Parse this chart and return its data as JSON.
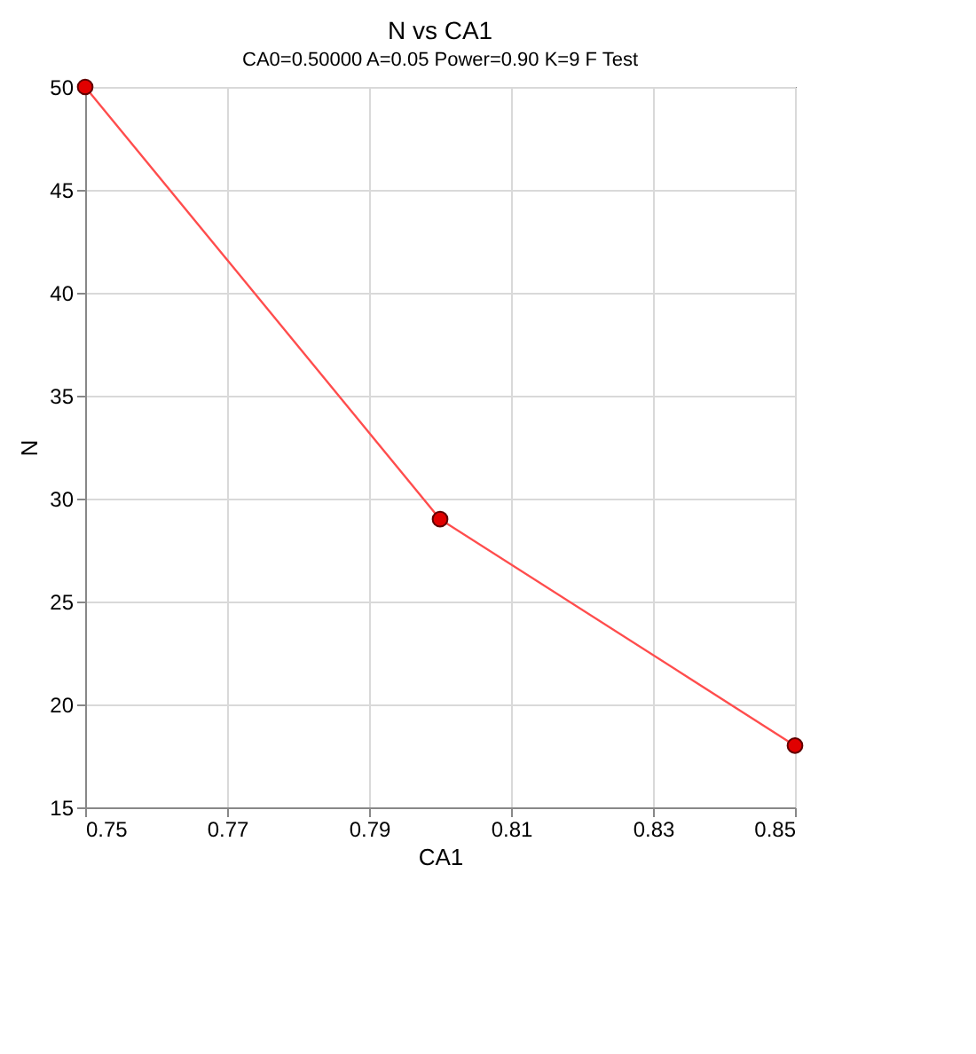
{
  "chart_data": {
    "type": "line",
    "title": "N vs CA1",
    "subtitle": "CA0=0.50000 A=0.05 Power=0.90 K=9 F Test",
    "xlabel": "CA1",
    "ylabel": "N",
    "x": [
      0.75,
      0.8,
      0.85
    ],
    "series": [
      {
        "color": "#ff4d4d",
        "values": [
          50,
          29,
          18
        ]
      }
    ],
    "xlim": [
      0.75,
      0.85
    ],
    "xticks": [
      0.75,
      0.77,
      0.79,
      0.81,
      0.83,
      0.85
    ],
    "ylim": [
      15,
      50
    ],
    "yticks": [
      15,
      20,
      25,
      30,
      35,
      40,
      45,
      50
    ],
    "grid": true,
    "marker": "circle",
    "line_style": "solid"
  }
}
